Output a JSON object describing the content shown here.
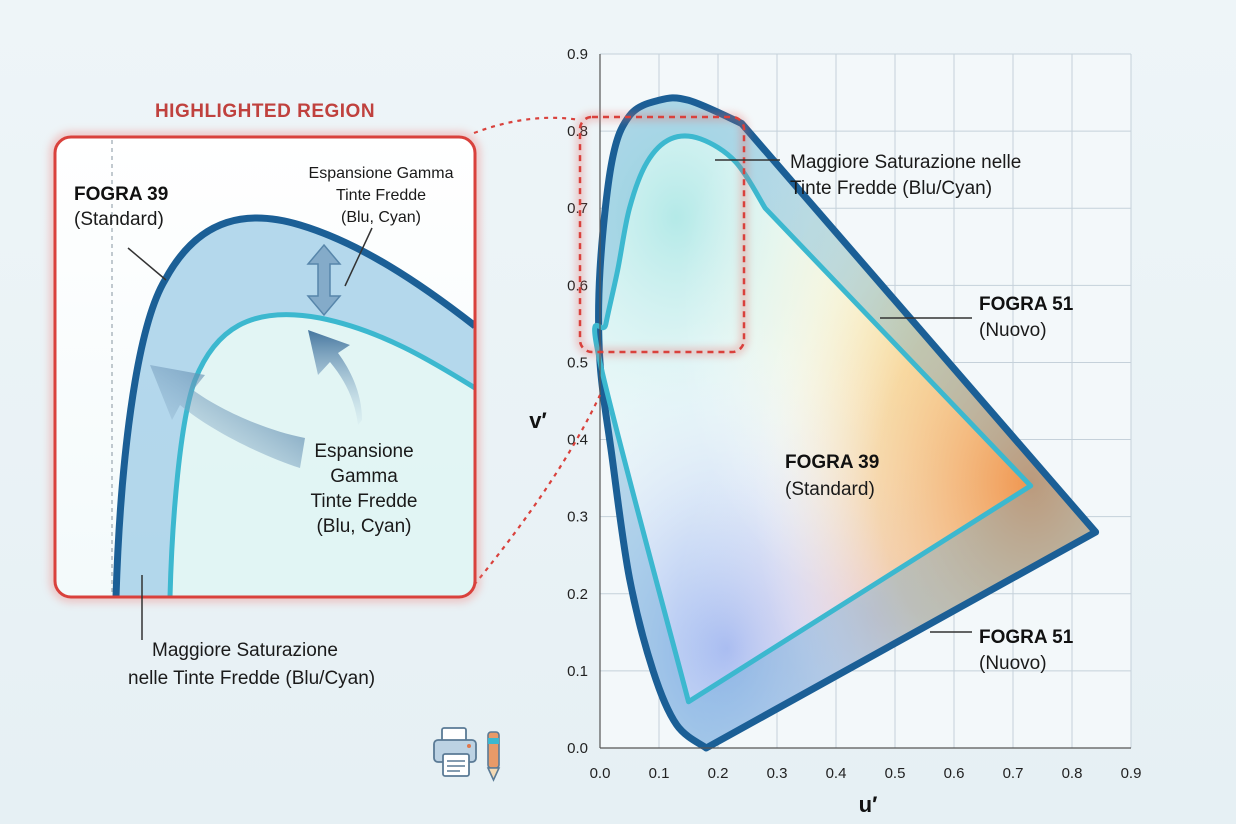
{
  "chart_data": {
    "type": "line",
    "xlabel": "u′",
    "ylabel": "v′",
    "xlim": [
      0.0,
      0.9
    ],
    "ylim": [
      0.0,
      0.9
    ],
    "x_ticks": [
      "0.0",
      "0.1",
      "0.2",
      "0.3",
      "0.4",
      "0.5",
      "0.6",
      "0.7",
      "0.8",
      "0.9"
    ],
    "y_ticks": [
      "0.0",
      "0.1",
      "0.2",
      "0.3",
      "0.4",
      "0.5",
      "0.6",
      "0.7",
      "0.8",
      "0.9"
    ],
    "grid": true,
    "series": [
      {
        "name": "FOGRA 51",
        "color": "#1b5f96",
        "points": [
          [
            0.18,
            0.0
          ],
          [
            0.84,
            0.28
          ],
          [
            0.24,
            0.81
          ],
          [
            0.15,
            0.84
          ],
          [
            0.1,
            0.84
          ],
          [
            0.05,
            0.82
          ],
          [
            0.02,
            0.76
          ],
          [
            0.0,
            0.62
          ],
          [
            0.0,
            0.5
          ],
          [
            0.02,
            0.38
          ],
          [
            0.05,
            0.22
          ],
          [
            0.09,
            0.1
          ],
          [
            0.13,
            0.03
          ]
        ]
      },
      {
        "name": "FOGRA 39",
        "color": "#3cb8cf",
        "points": [
          [
            0.15,
            0.06
          ],
          [
            0.73,
            0.34
          ],
          [
            0.28,
            0.7
          ],
          [
            0.23,
            0.76
          ],
          [
            0.17,
            0.79
          ],
          [
            0.12,
            0.79
          ],
          [
            0.08,
            0.76
          ],
          [
            0.05,
            0.7
          ],
          [
            0.03,
            0.62
          ],
          [
            0.01,
            0.55
          ],
          [
            0.0,
            0.5
          ]
        ]
      }
    ]
  },
  "labels": {
    "highlighted_region": "HIGHLIGHTED REGION",
    "top_callout_line1": "Maggiore Saturazione nelle",
    "top_callout_line2": "Tinte Fredde (Blu/Cyan)",
    "fogra51_mid_name": "FOGRA 51",
    "fogra51_mid_sub": "(Nuovo)",
    "fogra39_center_name": "FOGRA 39",
    "fogra39_center_sub": "(Standard)",
    "fogra51_low_name": "FOGRA 51",
    "fogra51_low_sub": "(Nuovo)",
    "inset_fogra39_name": "FOGRA 39",
    "inset_fogra39_sub": "(Standard)",
    "inset_exp_top_1": "Espansione Gamma",
    "inset_exp_top_2": "Tinte Fredde",
    "inset_exp_top_3": "(Blu, Cyan)",
    "inset_exp_mid_1": "Espansione",
    "inset_exp_mid_2": "Gamma",
    "inset_exp_mid_3": "Tinte Fredde",
    "inset_exp_mid_4": "(Blu, Cyan)",
    "bottom_callout_line1": "Maggiore Saturazione",
    "bottom_callout_line2_bold": "nelle Tinte Fredde",
    "bottom_callout_line2_rest": " (Blu/Cyan)"
  },
  "colors": {
    "fogra51_stroke": "#1b5f96",
    "fogra39_stroke": "#3cb8cf",
    "highlight": "#d9413c",
    "grid": "#c5d1da"
  },
  "icons": {
    "printer_pen": "printer-pen-icon"
  }
}
